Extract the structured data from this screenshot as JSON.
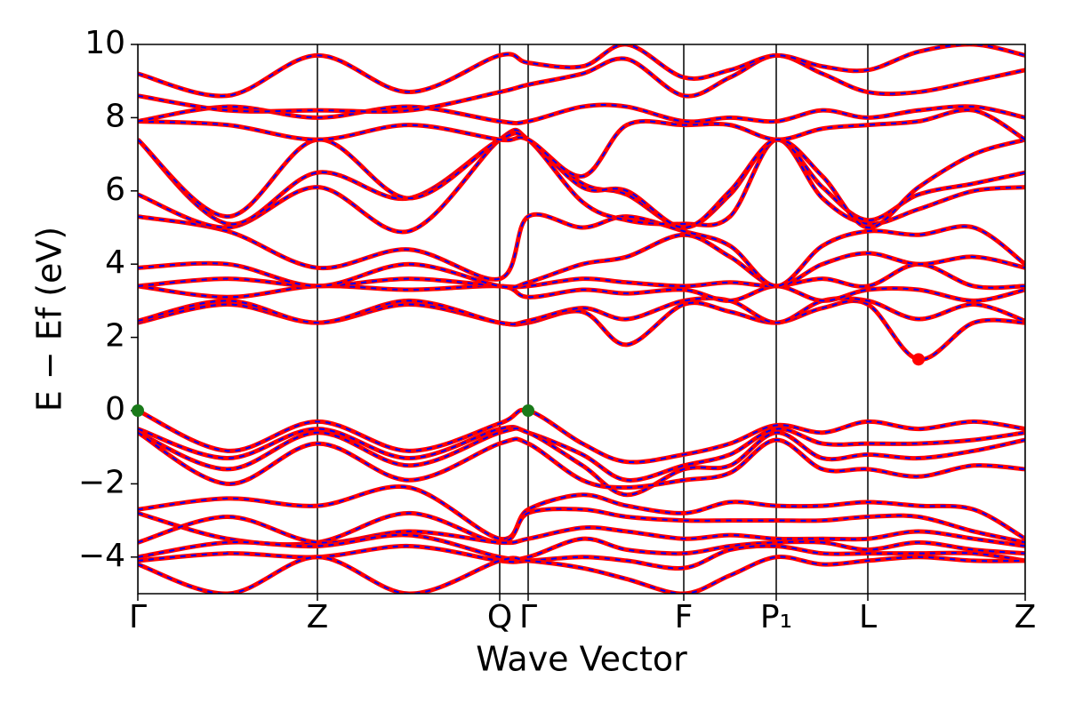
{
  "chart_data": {
    "type": "line",
    "xlabel": "Wave Vector",
    "ylabel": "E − Ef (eV)",
    "xlim": [
      0,
      9.98
    ],
    "ylim": [
      -5,
      10
    ],
    "xticks": [
      {
        "value": 0,
        "label": "Γ"
      },
      {
        "value": 2.02,
        "label": "Z"
      },
      {
        "value": 4.07,
        "label": "Q"
      },
      {
        "value": 4.39,
        "label": "Γ"
      },
      {
        "value": 6.14,
        "label": "F"
      },
      {
        "value": 7.18,
        "label": "P₁"
      },
      {
        "value": 8.21,
        "label": "L"
      },
      {
        "value": 9.98,
        "label": "Z"
      }
    ],
    "yticks": [
      {
        "value": -4,
        "label": "−4"
      },
      {
        "value": -2,
        "label": "−2"
      },
      0,
      2,
      4,
      6,
      8,
      10
    ],
    "line_color": "#ff0000",
    "dash_color": "#0000ff",
    "x": [
      0,
      1.01,
      2.02,
      3.05,
      4.07,
      4.39,
      5.0,
      5.5,
      6.14,
      6.66,
      7.18,
      7.7,
      8.21,
      8.78,
      9.4,
      9.98
    ],
    "series": [
      {
        "values": [
          0,
          -1.1,
          -0.3,
          -1.1,
          -0.35,
          0,
          -0.9,
          -1.4,
          -1.2,
          -0.9,
          -0.4,
          -0.6,
          -0.3,
          -0.5,
          -0.3,
          -0.5
        ]
      },
      {
        "values": [
          -0.5,
          -1.3,
          -0.5,
          -1.3,
          -0.5,
          -0.6,
          -1.2,
          -1.9,
          -1.5,
          -1.2,
          -0.5,
          -0.9,
          -0.9,
          -0.9,
          -0.8,
          -0.6
        ]
      },
      {
        "values": [
          -0.6,
          -1.6,
          -0.6,
          -1.5,
          -0.6,
          -0.6,
          -1.5,
          -2.3,
          -1.6,
          -1.5,
          -0.6,
          -1.3,
          -1.2,
          -1.3,
          -1.1,
          -0.8
        ]
      },
      {
        "values": [
          -0.6,
          -2.0,
          -0.9,
          -1.9,
          -0.9,
          -0.9,
          -1.9,
          -2.1,
          -1.9,
          -1.7,
          -0.8,
          -1.6,
          -1.6,
          -1.8,
          -1.5,
          -1.6
        ]
      },
      {
        "values": [
          -2.7,
          -2.4,
          -2.6,
          -2.1,
          -3.5,
          -2.7,
          -2.3,
          -2.6,
          -2.8,
          -2.5,
          -2.6,
          -2.6,
          -2.5,
          -2.6,
          -2.7,
          -3.5
        ]
      },
      {
        "values": [
          -2.8,
          -3.5,
          -3.6,
          -2.8,
          -3.6,
          -2.8,
          -2.7,
          -2.9,
          -3.0,
          -3.0,
          -3.0,
          -3.0,
          -2.9,
          -2.9,
          -3.3,
          -3.6
        ]
      },
      {
        "values": [
          -3.6,
          -2.9,
          -3.6,
          -3.3,
          -3.6,
          -3.5,
          -3.2,
          -3.3,
          -3.5,
          -3.4,
          -3.5,
          -3.5,
          -3.5,
          -3.3,
          -3.5,
          -3.7
        ]
      },
      {
        "values": [
          -4.0,
          -3.6,
          -3.7,
          -3.4,
          -4.0,
          -4.0,
          -3.5,
          -3.8,
          -3.9,
          -3.7,
          -3.6,
          -3.6,
          -3.8,
          -3.6,
          -3.8,
          -3.9
        ]
      },
      {
        "values": [
          -4.1,
          -3.9,
          -4.0,
          -3.7,
          -4.1,
          -4.1,
          -4.0,
          -4.1,
          -4.3,
          -3.8,
          -3.7,
          -3.9,
          -3.9,
          -3.9,
          -3.9,
          -4.1
        ]
      },
      {
        "values": [
          -4.2,
          -5.0,
          -4.0,
          -5.0,
          -4.1,
          -4.1,
          -4.3,
          -4.6,
          -5.0,
          -4.5,
          -4.0,
          -4.2,
          -4.1,
          -4.0,
          -4.1,
          -4.1
        ]
      },
      {
        "values": [
          2.4,
          2.9,
          2.4,
          2.9,
          2.4,
          2.4,
          2.7,
          1.8,
          2.9,
          2.7,
          2.4,
          2.8,
          2.9,
          1.4,
          2.4,
          2.4
        ]
      },
      {
        "values": [
          2.45,
          3.0,
          2.4,
          3.0,
          2.4,
          2.45,
          2.8,
          2.5,
          3.0,
          3.0,
          2.4,
          3.0,
          3.0,
          2.5,
          2.9,
          2.45
        ]
      },
      {
        "values": [
          3.4,
          3.1,
          3.4,
          3.3,
          3.4,
          3.1,
          3.3,
          3.2,
          3.3,
          3.0,
          3.4,
          3.0,
          3.3,
          3.3,
          3.0,
          3.3
        ]
      },
      {
        "values": [
          3.4,
          3.6,
          3.4,
          3.6,
          3.4,
          3.4,
          3.6,
          3.5,
          3.4,
          3.5,
          3.4,
          3.6,
          3.4,
          4.0,
          3.4,
          3.4
        ]
      },
      {
        "values": [
          3.9,
          4.0,
          3.4,
          4.0,
          3.4,
          3.5,
          4.0,
          4.2,
          4.8,
          4.2,
          3.4,
          4.0,
          4.3,
          4.0,
          4.2,
          3.9
        ]
      },
      {
        "values": [
          5.3,
          4.9,
          3.9,
          4.4,
          3.6,
          5.3,
          5.0,
          5.3,
          4.9,
          4.5,
          3.4,
          4.5,
          4.9,
          4.8,
          5.0,
          4.0
        ]
      },
      {
        "values": [
          5.9,
          5.0,
          6.1,
          4.9,
          7.4,
          7.4,
          5.7,
          5.2,
          5.1,
          5.3,
          7.4,
          5.8,
          5.1,
          5.5,
          6.0,
          6.1
        ]
      },
      {
        "values": [
          7.4,
          5.1,
          6.5,
          5.8,
          7.4,
          7.4,
          6.2,
          5.9,
          5.0,
          5.9,
          7.4,
          6.1,
          5.2,
          5.9,
          6.2,
          6.5
        ]
      },
      {
        "values": [
          7.4,
          5.3,
          7.4,
          5.8,
          7.4,
          7.4,
          6.1,
          6.0,
          5.0,
          6.0,
          7.4,
          6.4,
          5.0,
          6.1,
          7.0,
          7.4
        ]
      },
      {
        "values": [
          7.9,
          7.8,
          7.4,
          7.8,
          7.4,
          7.4,
          6.4,
          7.8,
          7.8,
          7.8,
          7.4,
          7.7,
          7.8,
          7.9,
          8.2,
          7.4
        ]
      },
      {
        "values": [
          7.9,
          8.3,
          8.0,
          8.3,
          7.9,
          7.9,
          8.3,
          8.3,
          7.9,
          8.0,
          7.9,
          8.2,
          8.0,
          8.2,
          8.3,
          8.0
        ]
      },
      {
        "values": [
          8.6,
          8.2,
          8.2,
          8.2,
          8.7,
          8.9,
          9.2,
          9.6,
          8.6,
          9.1,
          9.7,
          9.2,
          8.7,
          8.7,
          9.0,
          9.3
        ]
      },
      {
        "values": [
          9.2,
          8.6,
          9.7,
          8.7,
          9.7,
          9.5,
          9.4,
          10.0,
          9.1,
          9.3,
          9.7,
          9.4,
          9.3,
          9.8,
          10.0,
          9.7
        ]
      }
    ],
    "markers": [
      {
        "x": 0,
        "y": 0,
        "color": "#1a7a1a"
      },
      {
        "x": 4.39,
        "y": 0,
        "color": "#1a7a1a"
      },
      {
        "x": 8.78,
        "y": 1.4,
        "color": "#ff0000"
      }
    ]
  }
}
